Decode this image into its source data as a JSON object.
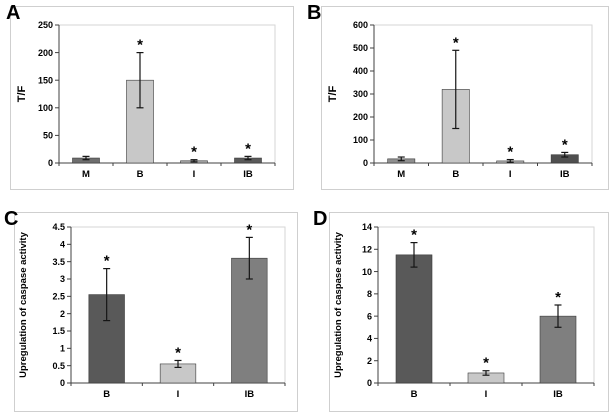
{
  "figure": {
    "background": "#ffffff",
    "description": "Four-panel bar chart figure with significance asterisks and error bars"
  },
  "chart_data": [
    {
      "panel_label": "A",
      "type": "bar",
      "title": "",
      "xlabel": "",
      "ylabel": "T/F",
      "categories": [
        "M",
        "B",
        "I",
        "IB"
      ],
      "values": [
        9,
        150,
        4,
        9
      ],
      "errors": [
        3,
        50,
        2,
        3
      ],
      "asterisks": [
        false,
        true,
        true,
        true
      ],
      "bar_colors": [
        "#6e6e6e",
        "#c8c8c8",
        "#a9a9a9",
        "#5a5a5a"
      ],
      "ylim": [
        0,
        250
      ],
      "yticks": [
        0,
        50,
        100,
        150,
        200,
        250
      ],
      "ytick_labels": [
        "0",
        "50",
        "100",
        "150",
        "200",
        "250"
      ],
      "grid": false,
      "legend": "none"
    },
    {
      "panel_label": "B",
      "type": "bar",
      "title": "",
      "xlabel": "",
      "ylabel": "T/F",
      "categories": [
        "M",
        "B",
        "I",
        "IB"
      ],
      "values": [
        18,
        320,
        9,
        36
      ],
      "errors": [
        8,
        170,
        6,
        10
      ],
      "asterisks": [
        false,
        true,
        true,
        true
      ],
      "bar_colors": [
        "#8f8f8f",
        "#c8c8c8",
        "#b5b5b5",
        "#4f4f4f"
      ],
      "ylim": [
        0,
        600
      ],
      "yticks": [
        0,
        100,
        200,
        300,
        400,
        500,
        600
      ],
      "ytick_labels": [
        "0",
        "100",
        "200",
        "300",
        "400",
        "500",
        "600"
      ],
      "grid": false,
      "legend": "none"
    },
    {
      "panel_label": "C",
      "type": "bar",
      "title": "",
      "xlabel": "",
      "ylabel": "Upregulation of caspase activity",
      "categories": [
        "B",
        "I",
        "IB"
      ],
      "values": [
        2.55,
        0.55,
        3.6
      ],
      "errors": [
        0.75,
        0.1,
        0.6
      ],
      "asterisks": [
        true,
        true,
        true
      ],
      "bar_colors": [
        "#595959",
        "#c8c8c8",
        "#7f7f7f"
      ],
      "ylim": [
        0,
        4.5
      ],
      "yticks": [
        0,
        0.5,
        1,
        1.5,
        2,
        2.5,
        3,
        3.5,
        4,
        4.5
      ],
      "ytick_labels": [
        "0",
        "0.5",
        "1",
        "1.5",
        "2",
        "2.5",
        "3",
        "3.5",
        "4",
        "4.5"
      ],
      "grid": false,
      "legend": "none"
    },
    {
      "panel_label": "D",
      "type": "bar",
      "title": "",
      "xlabel": "",
      "ylabel": "Upregulation of caspase activity",
      "categories": [
        "B",
        "I",
        "IB"
      ],
      "values": [
        11.5,
        0.9,
        6.0
      ],
      "errors": [
        1.1,
        0.2,
        1.0
      ],
      "asterisks": [
        true,
        true,
        true
      ],
      "bar_colors": [
        "#595959",
        "#c8c8c8",
        "#7f7f7f"
      ],
      "ylim": [
        0,
        14
      ],
      "yticks": [
        0,
        2,
        4,
        6,
        8,
        10,
        12,
        14
      ],
      "ytick_labels": [
        "0",
        "2",
        "4",
        "6",
        "8",
        "10",
        "12",
        "14"
      ],
      "grid": false,
      "legend": "none"
    }
  ]
}
